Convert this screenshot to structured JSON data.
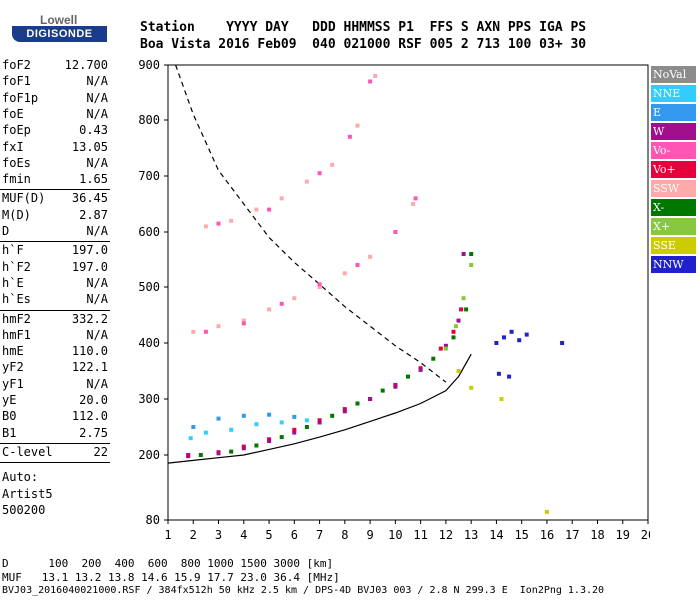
{
  "logo": {
    "top": "Lowell",
    "main": "DIGISONDE"
  },
  "header": {
    "line1": "Station    YYYY DAY   DDD HHMMSS P1  FFS S AXN PPS IGA PS",
    "line2": "Boa Vista 2016 Feb09  040 021000 RSF 005 2 713 100 03+ 30"
  },
  "params": {
    "group1": [
      {
        "name": "foF2",
        "value": "12.700"
      },
      {
        "name": "foF1",
        "value": "N/A"
      },
      {
        "name": "foF1p",
        "value": "N/A"
      },
      {
        "name": "foE",
        "value": "N/A"
      },
      {
        "name": "foEp",
        "value": "0.43"
      },
      {
        "name": "fxI",
        "value": "13.05"
      },
      {
        "name": "foEs",
        "value": "N/A"
      },
      {
        "name": "fmin",
        "value": "1.65"
      }
    ],
    "group2": [
      {
        "name": "MUF(D)",
        "value": "36.45"
      },
      {
        "name": "M(D)",
        "value": "2.87"
      },
      {
        "name": "D",
        "value": "N/A"
      }
    ],
    "group3": [
      {
        "name": "h`F",
        "value": "197.0"
      },
      {
        "name": "h`F2",
        "value": "197.0"
      },
      {
        "name": "h`E",
        "value": "N/A"
      },
      {
        "name": "h`Es",
        "value": "N/A"
      }
    ],
    "group4": [
      {
        "name": "hmF2",
        "value": "332.2"
      },
      {
        "name": "hmF1",
        "value": "N/A"
      },
      {
        "name": "hmE",
        "value": "110.0"
      },
      {
        "name": "yF2",
        "value": "122.1"
      },
      {
        "name": "yF1",
        "value": "N/A"
      },
      {
        "name": "yE",
        "value": "20.0"
      },
      {
        "name": "B0",
        "value": "112.0"
      },
      {
        "name": "B1",
        "value": "2.75"
      }
    ],
    "group5": [
      {
        "name": "C-level",
        "value": "22"
      }
    ],
    "auto_lines": [
      "Auto:",
      "Artist5",
      "500200"
    ]
  },
  "legend": [
    {
      "label": "NoVal",
      "color": "#8c8c8c"
    },
    {
      "label": "NNE",
      "color": "#33ccff"
    },
    {
      "label": "E",
      "color": "#3399ee"
    },
    {
      "label": "W",
      "color": "#a0108c"
    },
    {
      "label": "Vo-",
      "color": "#ff55b4"
    },
    {
      "label": "Vo+",
      "color": "#e6003c"
    },
    {
      "label": "SSW",
      "color": "#ffaaaa"
    },
    {
      "label": "X-",
      "color": "#007800"
    },
    {
      "label": "X+",
      "color": "#88c840"
    },
    {
      "label": "SSE",
      "color": "#cccc00"
    },
    {
      "label": "NNW",
      "color": "#2020cc"
    }
  ],
  "chart_data": {
    "type": "scatter",
    "xlim": [
      1,
      20
    ],
    "ylim": [
      80,
      900
    ],
    "x_ticks": [
      "1",
      "2",
      "3",
      "4",
      "5",
      "6",
      "7",
      "8",
      "9",
      "10",
      "11",
      "12",
      "13",
      "14",
      "15",
      "16",
      "17",
      "18",
      "19",
      "20"
    ],
    "y_ticks": [
      "80",
      "200",
      "300",
      "400",
      "500",
      "600",
      "700",
      "800",
      "900"
    ],
    "y_tick_values": [
      80,
      200,
      300,
      400,
      500,
      600,
      700,
      800,
      900
    ],
    "series": [
      {
        "name": "Vo+",
        "color": "#e6003c",
        "points": [
          [
            1.8,
            200
          ],
          [
            3,
            205
          ],
          [
            4,
            215
          ],
          [
            5,
            228
          ],
          [
            6,
            245
          ],
          [
            7,
            262
          ],
          [
            8,
            282
          ],
          [
            9,
            300
          ],
          [
            10,
            325
          ],
          [
            11,
            355
          ],
          [
            11.8,
            390
          ],
          [
            12.3,
            420
          ],
          [
            12.6,
            460
          ]
        ]
      },
      {
        "name": "X-",
        "color": "#007800",
        "points": [
          [
            2.3,
            200
          ],
          [
            3.5,
            206
          ],
          [
            4.5,
            217
          ],
          [
            5.5,
            232
          ],
          [
            6.5,
            250
          ],
          [
            7.5,
            270
          ],
          [
            8.5,
            292
          ],
          [
            9.5,
            315
          ],
          [
            10.5,
            340
          ],
          [
            11.5,
            372
          ],
          [
            12.3,
            410
          ],
          [
            12.8,
            460
          ],
          [
            13.0,
            560
          ]
        ]
      },
      {
        "name": "W",
        "color": "#a0108c",
        "points": [
          [
            1.8,
            198
          ],
          [
            3,
            203
          ],
          [
            4,
            212
          ],
          [
            5,
            225
          ],
          [
            6,
            240
          ],
          [
            7,
            258
          ],
          [
            8,
            278
          ],
          [
            9,
            300
          ],
          [
            10,
            322
          ],
          [
            11,
            352
          ],
          [
            12,
            395
          ],
          [
            12.5,
            440
          ],
          [
            12.7,
            560
          ]
        ]
      },
      {
        "name": "NNE",
        "color": "#33ccff",
        "points": [
          [
            1.9,
            230
          ],
          [
            2.5,
            240
          ],
          [
            3.5,
            245
          ],
          [
            4.5,
            255
          ],
          [
            5.5,
            258
          ],
          [
            6.5,
            262
          ]
        ]
      },
      {
        "name": "E",
        "color": "#3399ee",
        "points": [
          [
            2,
            250
          ],
          [
            3,
            265
          ],
          [
            4,
            270
          ],
          [
            5,
            272
          ],
          [
            6,
            268
          ]
        ]
      },
      {
        "name": "SSW",
        "color": "#ffaaaa",
        "points": [
          [
            2,
            420
          ],
          [
            3,
            430
          ],
          [
            4,
            440
          ],
          [
            5,
            460
          ],
          [
            6,
            480
          ],
          [
            7,
            500
          ],
          [
            8,
            525
          ],
          [
            9,
            555
          ],
          [
            10,
            600
          ],
          [
            10.7,
            650
          ],
          [
            2.5,
            610
          ],
          [
            3.5,
            620
          ],
          [
            4.5,
            640
          ],
          [
            5.5,
            660
          ],
          [
            6.5,
            690
          ],
          [
            7.5,
            720
          ],
          [
            8.5,
            790
          ],
          [
            9.2,
            880
          ]
        ]
      },
      {
        "name": "Vo-",
        "color": "#ff55b4",
        "points": [
          [
            2.5,
            420
          ],
          [
            4,
            435
          ],
          [
            5.5,
            470
          ],
          [
            7,
            505
          ],
          [
            8.5,
            540
          ],
          [
            10,
            600
          ],
          [
            10.8,
            660
          ],
          [
            3,
            615
          ],
          [
            5,
            640
          ],
          [
            7,
            705
          ],
          [
            8.2,
            770
          ],
          [
            9,
            870
          ]
        ]
      },
      {
        "name": "NNW",
        "color": "#2020cc",
        "points": [
          [
            14,
            400
          ],
          [
            14.3,
            410
          ],
          [
            14.6,
            420
          ],
          [
            14.9,
            405
          ],
          [
            15.2,
            415
          ],
          [
            16.6,
            400
          ],
          [
            14.1,
            345
          ],
          [
            14.5,
            340
          ]
        ]
      },
      {
        "name": "X+",
        "color": "#88c840",
        "points": [
          [
            12,
            390
          ],
          [
            12.4,
            430
          ],
          [
            12.7,
            480
          ],
          [
            13,
            540
          ]
        ]
      },
      {
        "name": "SSE",
        "color": "#cccc00",
        "points": [
          [
            12.5,
            350
          ],
          [
            13,
            320
          ],
          [
            14.2,
            300
          ],
          [
            16,
            95
          ]
        ]
      }
    ],
    "curves": [
      {
        "name": "dashed",
        "points": [
          [
            1.3,
            900
          ],
          [
            2,
            810
          ],
          [
            3,
            710
          ],
          [
            4,
            650
          ],
          [
            5,
            590
          ],
          [
            6,
            545
          ],
          [
            7,
            505
          ],
          [
            8,
            465
          ],
          [
            9,
            430
          ],
          [
            10,
            395
          ],
          [
            11,
            365
          ],
          [
            12,
            330
          ]
        ]
      },
      {
        "name": "solid",
        "points": [
          [
            1,
            185
          ],
          [
            2,
            190
          ],
          [
            3,
            195
          ],
          [
            4,
            200
          ],
          [
            5,
            210
          ],
          [
            6,
            220
          ],
          [
            7,
            232
          ],
          [
            8,
            245
          ],
          [
            9,
            260
          ],
          [
            10,
            275
          ],
          [
            11,
            292
          ],
          [
            12,
            315
          ],
          [
            12.5,
            340
          ],
          [
            13,
            380
          ]
        ]
      }
    ]
  },
  "footer": {
    "line1": "D      100  200  400  600  800 1000 1500 3000 [km]",
    "line2": "MUF   13.1 13.2 13.8 14.6 15.9 17.7 23.0 36.4 [MHz]",
    "line3": "BVJ03_2016040021000.RSF / 384fx512h 50 kHz 2.5 km / DPS-4D BVJ03 003 / 2.8 N 299.3 E  Ion2Png 1.3.20"
  }
}
